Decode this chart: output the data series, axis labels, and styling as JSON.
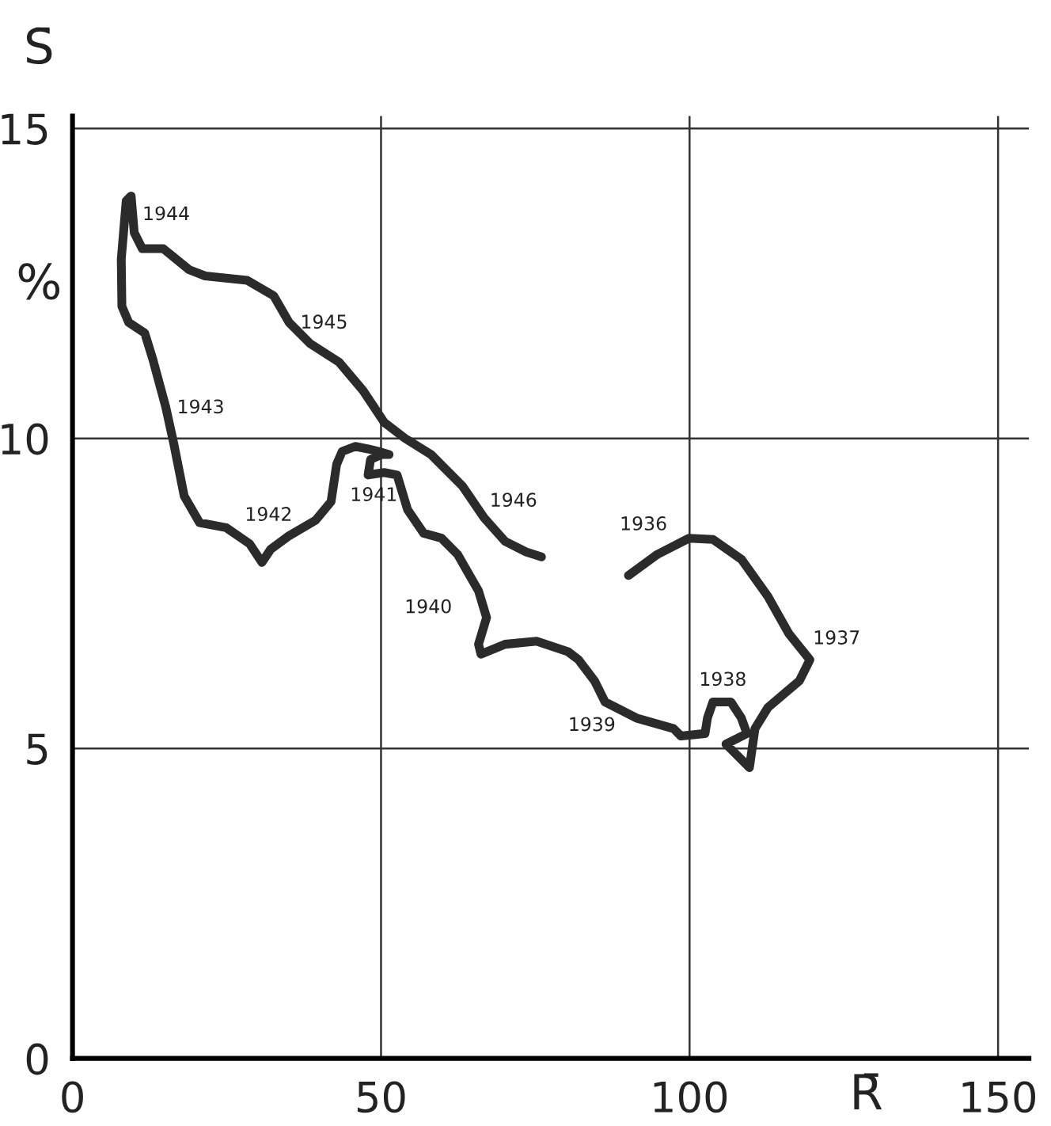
{
  "chart_data": {
    "type": "line",
    "ylabel": "S̄",
    "xlabel": "R̄",
    "annotations": [
      "%",
      "1936",
      "1937",
      "1938",
      "1939",
      "1940",
      "1941",
      "1942",
      "1943",
      "1944",
      "1945",
      "1946"
    ],
    "series": [
      {
        "color": "#2b2b2b",
        "x": [
          90.1,
          94.8,
          99.9,
          103.8,
          108.4,
          112.7,
          116.1,
          119.5,
          117.8,
          112.7,
          110.6,
          109.7,
          105.9,
          109.3,
          108.4,
          106.7,
          103.8,
          102.9,
          102.5,
          98.6,
          97.4,
          91.4,
          86.3,
          84.6,
          82.0,
          80.3,
          75.2,
          70.1,
          66.2,
          65.8,
          67.1,
          65.8,
          62.4,
          59.8,
          56.9,
          54.3,
          52.6,
          50.5,
          47.9,
          48.3,
          50.1,
          51.3,
          49.6,
          47.9,
          45.8,
          43.7,
          42.8,
          41.9,
          39.4,
          35.1,
          32.1,
          30.7,
          28.7,
          24.9,
          20.6,
          18.1,
          16.4,
          15.1,
          13.0,
          11.7,
          9.1,
          8.0,
          7.9,
          8.7,
          9.5,
          10.0,
          11.3,
          14.7,
          18.9,
          21.5,
          28.3,
          32.6,
          35.1,
          38.5,
          43.2,
          47.1,
          50.5,
          53.9,
          58.1,
          63.2,
          66.7,
          70.1,
          73.5,
          76.0
        ],
        "values": [
          7.79,
          8.13,
          8.39,
          8.37,
          8.05,
          7.45,
          6.85,
          6.43,
          6.09,
          5.66,
          5.32,
          4.69,
          5.07,
          5.24,
          5.49,
          5.75,
          5.75,
          5.49,
          5.24,
          5.2,
          5.32,
          5.49,
          5.75,
          6.09,
          6.43,
          6.56,
          6.73,
          6.68,
          6.52,
          6.68,
          7.11,
          7.54,
          8.13,
          8.39,
          8.47,
          8.85,
          9.41,
          9.45,
          9.41,
          9.66,
          9.74,
          9.74,
          9.79,
          9.83,
          9.87,
          9.79,
          9.58,
          8.98,
          8.68,
          8.43,
          8.21,
          8.0,
          8.3,
          8.56,
          8.64,
          9.07,
          9.92,
          10.51,
          11.28,
          11.7,
          11.87,
          12.13,
          12.89,
          13.83,
          13.91,
          13.32,
          13.06,
          13.06,
          12.72,
          12.62,
          12.55,
          12.3,
          11.87,
          11.53,
          11.23,
          10.77,
          10.26,
          10.0,
          9.74,
          9.23,
          8.72,
          8.34,
          8.17,
          8.09
        ]
      }
    ],
    "xlim": [
      0,
      155
    ],
    "ylim": [
      0,
      15.2
    ],
    "xticks": [
      0,
      50,
      100,
      150
    ],
    "yticks": [
      0,
      5,
      10,
      15
    ],
    "grid": true,
    "marker": "none",
    "line_style": "solid"
  }
}
